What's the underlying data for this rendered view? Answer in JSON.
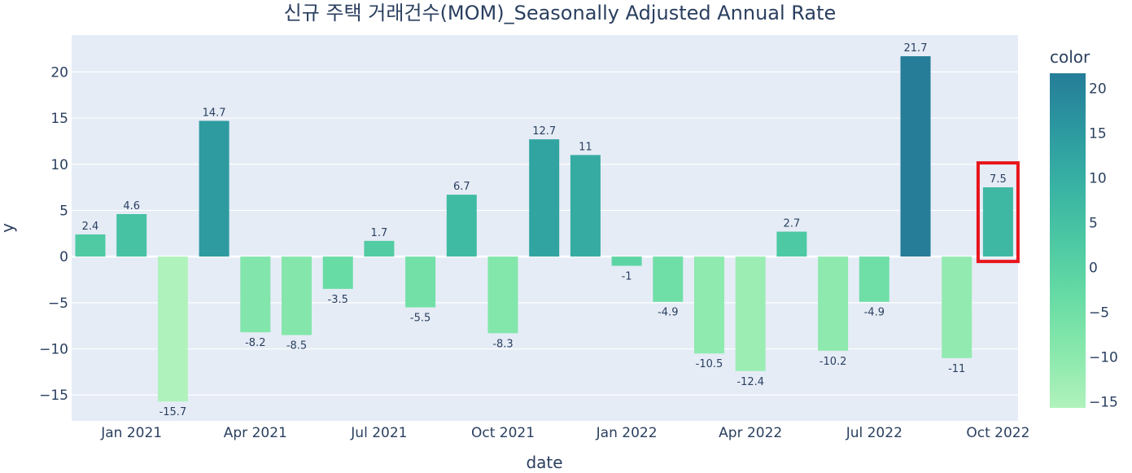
{
  "chart_data": {
    "type": "bar",
    "title": "신규 주택 거래건수(MOM)_Seasonally Adjusted Annual Rate",
    "xlabel": "date",
    "ylabel": "y",
    "ylim": [
      -17.8,
      24.0
    ],
    "grid": true,
    "x_ticks": [
      "Jan 2021",
      "Apr 2021",
      "Jul 2021",
      "Oct 2021",
      "Jan 2022",
      "Apr 2022",
      "Jul 2022",
      "Oct 2022"
    ],
    "y_ticks": [
      20,
      15,
      10,
      5,
      0,
      -5,
      -10,
      -15
    ],
    "y_tick_labels": [
      "20",
      "15",
      "10",
      "5",
      "0",
      "−5",
      "−10",
      "−15"
    ],
    "categories": [
      "2020-12",
      "2021-01",
      "2021-02",
      "2021-03",
      "2021-04",
      "2021-05",
      "2021-06",
      "2021-07",
      "2021-08",
      "2021-09",
      "2021-10",
      "2021-11",
      "2021-12",
      "2022-01",
      "2022-02",
      "2022-03",
      "2022-04",
      "2022-05",
      "2022-06",
      "2022-07",
      "2022-08",
      "2022-09",
      "2022-10"
    ],
    "values": [
      2.4,
      4.6,
      -15.7,
      14.7,
      -8.2,
      -8.5,
      -3.5,
      1.7,
      -5.5,
      6.7,
      -8.3,
      12.7,
      11,
      -1,
      -4.9,
      -10.5,
      -12.4,
      2.7,
      -10.2,
      -4.9,
      21.7,
      -11,
      7.5
    ],
    "value_labels": [
      "2.4",
      "4.6",
      "-15.7",
      "14.7",
      "-8.2",
      "-8.5",
      "-3.5",
      "1.7",
      "-5.5",
      "6.7",
      "-8.3",
      "12.7",
      "11",
      "-1",
      "-4.9",
      "-10.5",
      "-12.4",
      "2.7",
      "-10.2",
      "-4.9",
      "21.7",
      "-11",
      "7.5"
    ],
    "highlighted_index": 22,
    "highlight_color": "#e8141b",
    "colorbar": {
      "title": "color",
      "range": [
        -15.7,
        21.7
      ],
      "ticks": [
        20,
        15,
        10,
        5,
        0,
        -5,
        -10,
        -15
      ],
      "tick_labels": [
        "20",
        "15",
        "10",
        "5",
        "0",
        "−5",
        "−10",
        "−15"
      ],
      "colors": [
        "#b0f2bc",
        "#89e8ac",
        "#67dba5",
        "#4cc8a3",
        "#38b2a3",
        "#2c98a0",
        "#257d98"
      ]
    },
    "plot_background": "#e5ecf6"
  }
}
